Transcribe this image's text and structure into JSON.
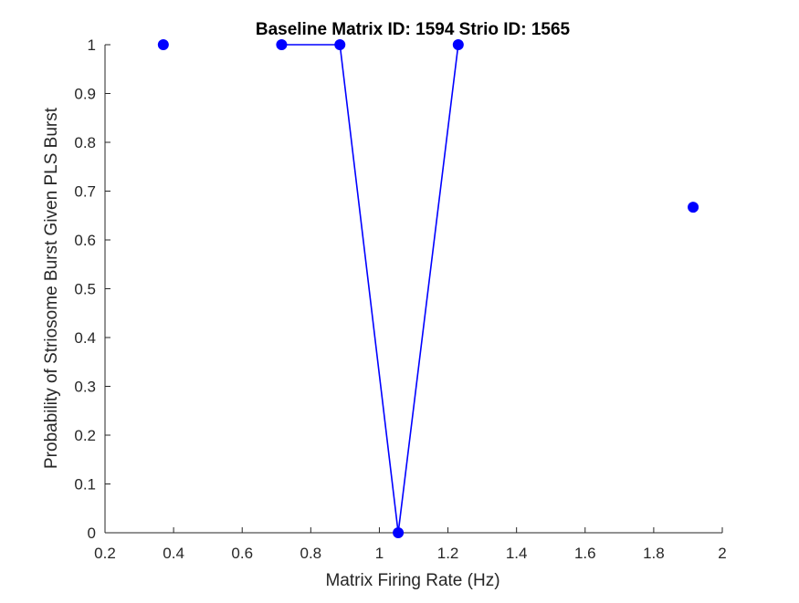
{
  "chart_data": {
    "type": "line",
    "title": "Baseline Matrix ID: 1594 Strio ID: 1565",
    "xlabel": "Matrix Firing Rate (Hz)",
    "ylabel": "Probability of Striosome Burst Given PLS Burst",
    "xlim": [
      0.2,
      2
    ],
    "ylim": [
      0,
      1
    ],
    "x_ticks": [
      0.2,
      0.4,
      0.6,
      0.8,
      1,
      1.2,
      1.4,
      1.6,
      1.8,
      2
    ],
    "x_tick_labels": [
      "0.2",
      "0.4",
      "0.6",
      "0.8",
      "1",
      "1.2",
      "1.4",
      "1.6",
      "1.8",
      "2"
    ],
    "y_ticks": [
      0,
      0.1,
      0.2,
      0.3,
      0.4,
      0.5,
      0.6,
      0.7,
      0.8,
      0.9,
      1
    ],
    "y_tick_labels": [
      "0",
      "0.1",
      "0.2",
      "0.3",
      "0.4",
      "0.5",
      "0.6",
      "0.7",
      "0.8",
      "0.9",
      "1"
    ],
    "grid": false,
    "series": [
      {
        "color": "#0000ff",
        "marker": "circle",
        "x": [
          0.37,
          null,
          0.715,
          0.885,
          1.055,
          1.23,
          null,
          1.915
        ],
        "y": [
          1,
          null,
          1,
          1,
          0,
          1,
          null,
          0.667
        ]
      }
    ]
  }
}
